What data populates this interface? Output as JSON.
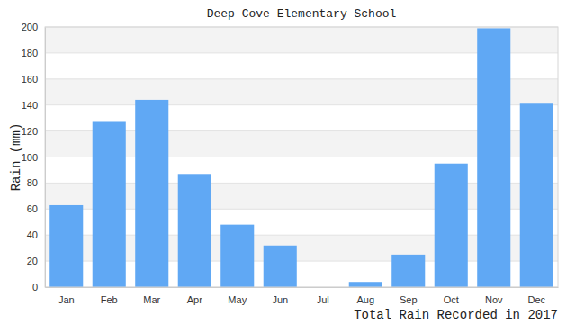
{
  "chart_data": {
    "type": "bar",
    "title": "Deep Cove Elementary School",
    "y_label": "Rain (mm)",
    "x_label": "Total Rain Recorded in 2017",
    "categories": [
      "Jan",
      "Feb",
      "Mar",
      "Apr",
      "May",
      "Jun",
      "Jul",
      "Aug",
      "Sep",
      "Oct",
      "Nov",
      "Dec"
    ],
    "values": [
      63,
      127,
      144,
      87,
      48,
      32,
      0,
      4,
      25,
      95,
      199,
      141
    ],
    "color": "#60a8f4",
    "ylim": [
      0,
      200
    ],
    "yticks": [
      0,
      20,
      40,
      60,
      80,
      100,
      120,
      140,
      160,
      180,
      200
    ],
    "grid": true
  }
}
